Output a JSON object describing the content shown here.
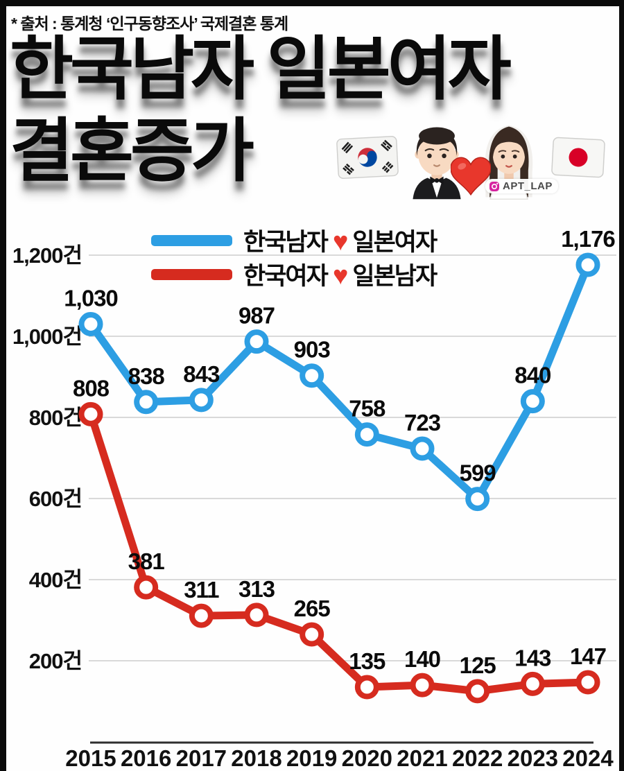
{
  "source_note": "* 출처 : 통계청 ‘인구동향조사’ 국제결혼 통계",
  "title": {
    "line1": "한국남자 일본여자",
    "line2": "결혼증가"
  },
  "header": {
    "watermark": "APT_LAP",
    "emojis": [
      "korea-flag",
      "groom",
      "red-heart",
      "bride",
      "japan-flag"
    ]
  },
  "legend": {
    "items": [
      {
        "left": "한국남자",
        "heart": "♥",
        "right": "일본여자",
        "color": "#2d9ee3"
      },
      {
        "left": "한국여자",
        "heart": "♥",
        "right": "일본남자",
        "color": "#d62b1f"
      }
    ]
  },
  "colors": {
    "series_blue": "#2d9ee3",
    "series_red": "#d62b1f",
    "grid": "#d9d9d9",
    "axis": "#2f2f2f",
    "heart": "#e8372c",
    "label_text": "#0b0b0b"
  },
  "chart_data": {
    "type": "line",
    "x": [
      2015,
      2016,
      2017,
      2018,
      2019,
      2020,
      2021,
      2022,
      2023,
      2024
    ],
    "series": [
      {
        "name": "한국남자 ❤ 일본여자",
        "color": "#2d9ee3",
        "values": [
          1030,
          838,
          843,
          987,
          903,
          758,
          723,
          599,
          840,
          1176
        ]
      },
      {
        "name": "한국여자 ❤ 일본남자",
        "color": "#d62b1f",
        "values": [
          808,
          381,
          311,
          313,
          265,
          135,
          140,
          125,
          143,
          147
        ]
      }
    ],
    "unit_suffix": "건",
    "yticks": [
      200,
      400,
      600,
      800,
      1000,
      1200
    ],
    "ylim": [
      0,
      1280
    ],
    "grid": true,
    "legend_position": "top-center",
    "marker": "open-circle"
  }
}
